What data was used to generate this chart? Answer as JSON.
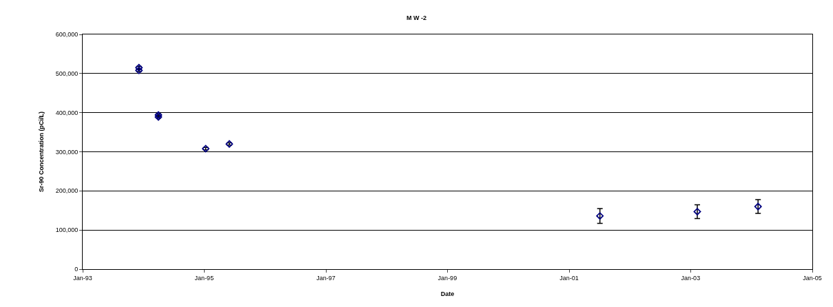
{
  "chart_data": {
    "type": "scatter",
    "title": "M W -2",
    "xlabel": "Date",
    "ylabel": "Sr-90 Concentration (pCi/L)",
    "series": [
      {
        "color": "#000080",
        "x": [
          "1993-12-05",
          "1993-12-05",
          "1994-04-01",
          "1994-04-01",
          "1995-01-10",
          "1995-06-01",
          "2001-07-05",
          "2003-02-10",
          "2004-02-10"
        ],
        "values": [
          515000,
          508000,
          394000,
          389000,
          308000,
          320000,
          136000,
          147000,
          160000
        ],
        "errors": [
          3000,
          3000,
          3000,
          3000,
          3000,
          3000,
          18800,
          17500,
          17500
        ]
      }
    ],
    "xlim": [
      "1993-01-01",
      "2005-01-01"
    ],
    "xticks": [
      {
        "value": "1993-01-01",
        "label": "Jan-93"
      },
      {
        "value": "1995-01-01",
        "label": "Jan-95"
      },
      {
        "value": "1997-01-01",
        "label": "Jan-97"
      },
      {
        "value": "1999-01-01",
        "label": "Jan-99"
      },
      {
        "value": "2001-01-01",
        "label": "Jan-01"
      },
      {
        "value": "2003-01-01",
        "label": "Jan-03"
      },
      {
        "value": "2005-01-01",
        "label": "Jan-05"
      }
    ],
    "ylim": [
      0,
      600000
    ],
    "yticks": [
      {
        "value": 0,
        "label": "0"
      },
      {
        "value": 100000,
        "label": "100,000"
      },
      {
        "value": 200000,
        "label": "200,000"
      },
      {
        "value": 300000,
        "label": "300,000"
      },
      {
        "value": 400000,
        "label": "400,000"
      },
      {
        "value": 500000,
        "label": "500,000"
      },
      {
        "value": 600000,
        "label": "600,000"
      }
    ],
    "grid": "y",
    "marker": "diamond"
  }
}
